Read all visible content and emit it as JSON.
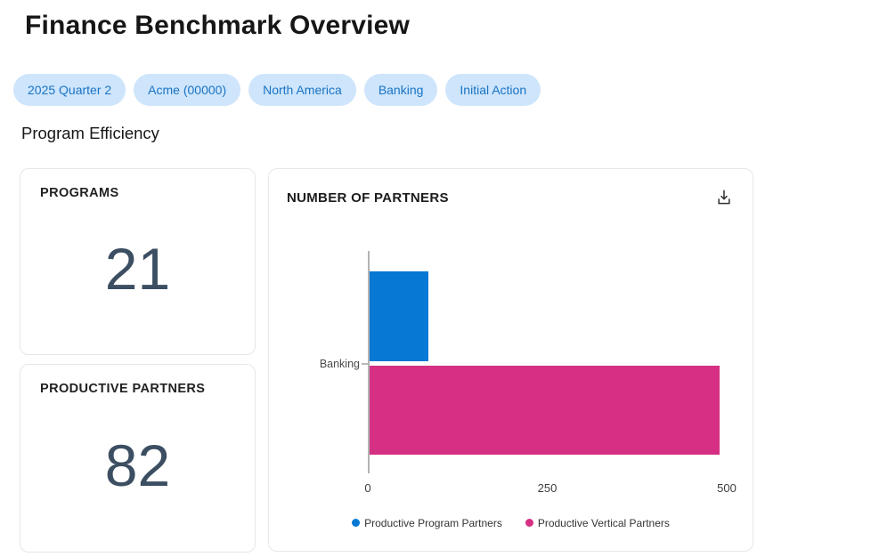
{
  "header": {
    "title": "Finance Benchmark Overview",
    "chips": [
      "2025 Quarter 2",
      "Acme (00000)",
      "North America",
      "Banking",
      "Initial Action"
    ]
  },
  "section": {
    "title": "Program Efficiency"
  },
  "stats": [
    {
      "label": "PROGRAMS",
      "value": "21"
    },
    {
      "label": "PRODUCTIVE PARTNERS",
      "value": "82"
    }
  ],
  "icons": {
    "download": "download-icon"
  },
  "chart_data": {
    "type": "bar",
    "orientation": "horizontal",
    "title": "NUMBER OF PARTNERS",
    "categories": [
      "Banking"
    ],
    "series": [
      {
        "name": "Productive Program Partners",
        "values": [
          82
        ],
        "color": "#0778d4"
      },
      {
        "name": "Productive Vertical Partners",
        "values": [
          487
        ],
        "color": "#d53084"
      }
    ],
    "xlim": [
      0,
      500
    ],
    "xticks": [
      "0",
      "250",
      "500"
    ],
    "grid": false,
    "legend_position": "bottom"
  },
  "colors": {
    "chip_background": "#cee5fb",
    "chip_text": "#1a73c4",
    "stat_value": "#3c4e62",
    "card_border": "#e7e7e7",
    "axis": "#b3b3b3"
  }
}
